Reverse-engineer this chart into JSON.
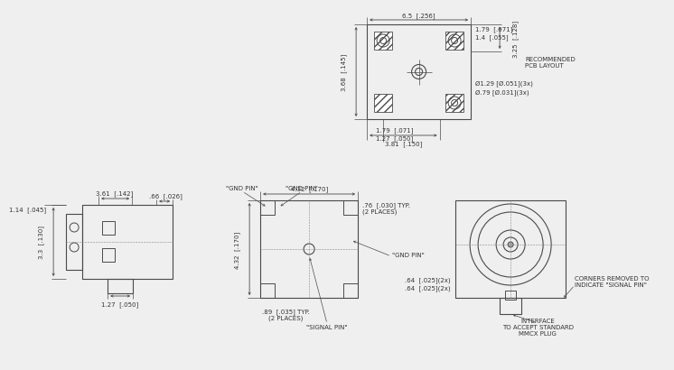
{
  "bg_color": "#efefef",
  "line_color": "#4a4a4a",
  "font_size": 5.0,
  "annotations": {
    "recommended_pcb": "RECOMMENDED\nPCB LAYOUT",
    "dim_65": "6.5  [.256]",
    "dim_179a": "1.79  [.071]",
    "dim_14": "1.4  [.055]",
    "dim_325": "3.25  [.128]",
    "dim_368": "3.68  [.145]",
    "dim_179b": "1.79  [.071]",
    "dim_127a": "1.27  [.050]",
    "dim_381": "3.81  [.150]",
    "dim_129": "Ø1.29 [Ø.051](3x)",
    "dim_079": "Ø.79 [Ø.031](3x)",
    "dim_114": "1.14  [.045]",
    "dim_361": "3.61  [.142]",
    "dim_066": ".66  [.026]",
    "dim_33": "3.3  [.130]",
    "dim_127b": "1.27  [.050]",
    "dim_432a": "4.32  [.170]",
    "dim_432b": "4.32  [.170]",
    "dim_076": ".76  [.030] TYP.\n(2 PLACES)",
    "dim_089": ".89  [.035] TYP.\n(2 PLACES)",
    "dim_064a": ".64  [.025](2x)",
    "dim_064b": ".64  [.025](2x)",
    "gnd_pin1": "\"GND PIN\"",
    "gnd_pin2": "\"GND PIN\"",
    "gnd_pin3": "\"GND PIN\"",
    "signal_pin": "\"SIGNAL PIN\"",
    "corners_note": "CORNERS REMOVED TO\nINDICATE \"SIGNAL PIN\"",
    "interface_note": "INTERFACE\nTO ACCEPT STANDARD\nMMCX PLUG"
  }
}
